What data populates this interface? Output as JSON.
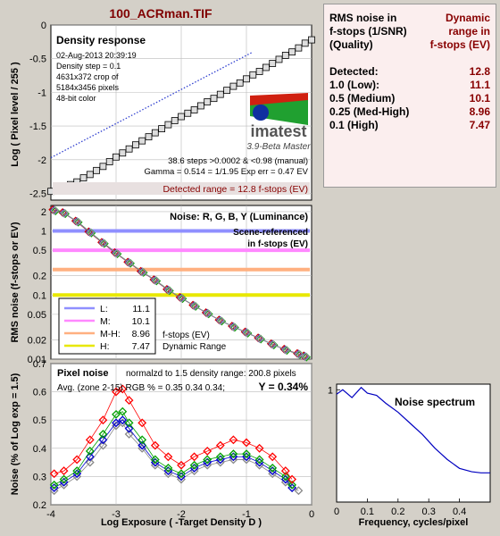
{
  "window_title": "100_ACRman.TIF",
  "colors": {
    "bg": "#d4d0c8",
    "dark_red": "#880000",
    "L": "#8f8fff",
    "M": "#ff88ff",
    "MH": "#ffb080",
    "H": "#e8e800"
  },
  "summary_panel": {
    "header_left_lines": [
      "RMS noise in",
      "f-stops (1/SNR)",
      "(Quality)"
    ],
    "header_right_lines": [
      "Dynamic",
      "range in",
      "f-stops (EV)"
    ],
    "rows": [
      {
        "label": "Detected:",
        "value": "12.8"
      },
      {
        "label": "1.0   (Low):",
        "value": "11.1"
      },
      {
        "label": "0.5   (Medium)",
        "value": "10.1"
      },
      {
        "label": "0.25 (Med-High)",
        "value": "8.96"
      },
      {
        "label": "0.1   (High)",
        "value": "7.47"
      }
    ]
  },
  "chart_data": [
    {
      "type": "line",
      "title": "Density response",
      "ylabel": "Log ( Pixel level / 255 )",
      "xlim": [
        -4,
        0
      ],
      "ylim": [
        -2.6,
        0
      ],
      "yticks": [
        "0",
        "-0.5",
        "-1",
        "-1.5",
        "-2",
        "-2.5"
      ],
      "info_lines": [
        "02-Aug-2013 20:39:19",
        "Density step = 0.1",
        "4631x372 crop of",
        "5184x3456 pixels",
        "48-bit color"
      ],
      "stats_lines": [
        "38.6 steps >0.0002 & <0.98 (manual)",
        "Gamma = 0.514 = 1/1.95  Exp err = 0.47 EV"
      ],
      "detected_range": "Detected range = 12.8 f-stops (EV)",
      "logo": "imatest",
      "logo_sub": "3.9-Beta  Master",
      "series": [
        {
          "name": "squares",
          "x": [
            -4.0,
            -3.9,
            -3.8,
            -3.7,
            -3.6,
            -3.5,
            -3.4,
            -3.3,
            -3.2,
            -3.1,
            -3.0,
            -2.9,
            -2.8,
            -2.7,
            -2.6,
            -2.5,
            -2.4,
            -2.3,
            -2.2,
            -2.1,
            -2.0,
            -1.9,
            -1.8,
            -1.7,
            -1.6,
            -1.5,
            -1.4,
            -1.3,
            -1.2,
            -1.1,
            -1.0,
            -0.9,
            -0.8,
            -0.7,
            -0.6,
            -0.5,
            -0.4,
            -0.3,
            -0.2,
            -0.1,
            0.0
          ],
          "y": [
            -2.47,
            -2.44,
            -2.41,
            -2.37,
            -2.33,
            -2.27,
            -2.22,
            -2.16,
            -2.1,
            -2.03,
            -1.96,
            -1.9,
            -1.84,
            -1.78,
            -1.72,
            -1.66,
            -1.6,
            -1.54,
            -1.48,
            -1.42,
            -1.36,
            -1.31,
            -1.26,
            -1.2,
            -1.14,
            -1.09,
            -1.03,
            -0.97,
            -0.91,
            -0.86,
            -0.8,
            -0.74,
            -0.69,
            -0.63,
            -0.57,
            -0.51,
            -0.45,
            -0.4,
            -0.34,
            -0.27,
            -0.22
          ]
        },
        {
          "name": "fit",
          "x": [
            -4.0,
            -0.9
          ],
          "y": [
            -1.97,
            -0.4
          ]
        }
      ]
    },
    {
      "type": "line",
      "title": "Noise: R, G, B, Y (Luminance)",
      "subtitle_lines": [
        "Scene-referenced",
        "in f-stops (EV)"
      ],
      "ylabel": "RMS noise (f-stops or EV)",
      "xlim": [
        -4,
        0
      ],
      "ylim_log": [
        0.01,
        2.5
      ],
      "yticks": [
        "2",
        "1",
        "0.5",
        "0.2",
        "0.1",
        "0.05",
        "0.02",
        "0.01"
      ],
      "ytick_values": [
        2,
        1,
        0.5,
        0.2,
        0.1,
        0.05,
        0.02,
        0.01
      ],
      "legend": [
        {
          "label": "L:",
          "value": "11.1",
          "level": 1.0
        },
        {
          "label": "M:",
          "value": "10.1",
          "level": 0.5
        },
        {
          "label": "M-H:",
          "value": "8.96",
          "level": 0.25
        },
        {
          "label": "H:",
          "value": "7.47",
          "level": 0.1
        }
      ],
      "legend_note_lines": [
        "f-stops (EV)",
        "Dynamic Range"
      ],
      "series": [
        {
          "name": "noise",
          "x": [
            -3.95,
            -3.8,
            -3.6,
            -3.4,
            -3.2,
            -3.0,
            -2.8,
            -2.6,
            -2.4,
            -2.2,
            -2.0,
            -1.8,
            -1.6,
            -1.4,
            -1.2,
            -1.0,
            -0.8,
            -0.6,
            -0.4,
            -0.2,
            -0.1
          ],
          "y": [
            2.1,
            1.9,
            1.4,
            0.95,
            0.65,
            0.45,
            0.32,
            0.23,
            0.17,
            0.12,
            0.09,
            0.068,
            0.052,
            0.04,
            0.032,
            0.026,
            0.021,
            0.017,
            0.014,
            0.012,
            0.011
          ]
        }
      ]
    },
    {
      "type": "line",
      "title": "Pixel noise",
      "caption": "normalzd to 1.5 density range: 200.8 pixels",
      "avg_line": "Avg. (zone 2-15) RGB % = 0.35  0.34  0.34;",
      "y_value": "Y = 0.34%",
      "xlabel": "Log Exposure ( -Target Density D )",
      "ylabel": "Noise (% of Log exp = 1.5)",
      "xlim": [
        -4,
        0
      ],
      "ylim": [
        0.2,
        0.7
      ],
      "xticks": [
        "-4",
        "-3",
        "-2",
        "-1",
        "0"
      ],
      "yticks": [
        "0.7",
        "0.6",
        "0.5",
        "0.4",
        "0.3",
        "0.2"
      ],
      "series": [
        {
          "name": "R",
          "color": "#ff0000",
          "x": [
            -3.95,
            -3.8,
            -3.6,
            -3.4,
            -3.2,
            -3.0,
            -2.9,
            -2.8,
            -2.6,
            -2.4,
            -2.2,
            -2.0,
            -1.8,
            -1.6,
            -1.4,
            -1.2,
            -1.0,
            -0.8,
            -0.6,
            -0.4,
            -0.3
          ],
          "y": [
            0.31,
            0.32,
            0.36,
            0.43,
            0.5,
            0.6,
            0.61,
            0.57,
            0.49,
            0.41,
            0.37,
            0.34,
            0.37,
            0.39,
            0.41,
            0.43,
            0.42,
            0.4,
            0.37,
            0.32,
            0.29
          ]
        },
        {
          "name": "G",
          "color": "#00a000",
          "x": [
            -3.95,
            -3.8,
            -3.6,
            -3.4,
            -3.2,
            -3.0,
            -2.9,
            -2.8,
            -2.6,
            -2.4,
            -2.2,
            -2.0,
            -1.8,
            -1.6,
            -1.4,
            -1.2,
            -1.0,
            -0.8,
            -0.6,
            -0.4,
            -0.3
          ],
          "y": [
            0.27,
            0.29,
            0.32,
            0.39,
            0.45,
            0.52,
            0.53,
            0.49,
            0.43,
            0.36,
            0.33,
            0.31,
            0.34,
            0.36,
            0.37,
            0.38,
            0.38,
            0.36,
            0.33,
            0.3,
            0.27
          ]
        },
        {
          "name": "B",
          "color": "#0000d0",
          "x": [
            -3.95,
            -3.8,
            -3.6,
            -3.4,
            -3.2,
            -3.0,
            -2.9,
            -2.8,
            -2.6,
            -2.4,
            -2.2,
            -2.0,
            -1.8,
            -1.6,
            -1.4,
            -1.2,
            -1.0,
            -0.8,
            -0.6,
            -0.4,
            -0.3
          ],
          "y": [
            0.26,
            0.28,
            0.31,
            0.37,
            0.43,
            0.49,
            0.5,
            0.47,
            0.41,
            0.35,
            0.32,
            0.3,
            0.33,
            0.35,
            0.36,
            0.37,
            0.37,
            0.35,
            0.32,
            0.29,
            0.26
          ]
        },
        {
          "name": "Y",
          "color": "#888888",
          "x": [
            -3.95,
            -3.8,
            -3.6,
            -3.4,
            -3.2,
            -3.0,
            -2.9,
            -2.8,
            -2.6,
            -2.4,
            -2.2,
            -2.0,
            -1.8,
            -1.6,
            -1.4,
            -1.2,
            -1.0,
            -0.8,
            -0.6,
            -0.4,
            -0.3,
            -0.2
          ],
          "y": [
            0.25,
            0.27,
            0.3,
            0.35,
            0.41,
            0.48,
            0.49,
            0.45,
            0.4,
            0.34,
            0.31,
            0.29,
            0.32,
            0.34,
            0.35,
            0.36,
            0.36,
            0.34,
            0.31,
            0.28,
            0.26,
            0.25
          ]
        }
      ]
    },
    {
      "type": "line",
      "title": "Noise spectrum",
      "xlabel": "Frequency, cycles/pixel",
      "xlim": [
        0,
        0.5
      ],
      "ylim": [
        0,
        1.05
      ],
      "xticks": [
        "0",
        "0.1",
        "0.2",
        "0.3",
        "0.4"
      ],
      "yticks": [
        "1"
      ],
      "series": [
        {
          "name": "spectrum",
          "x": [
            0.0,
            0.02,
            0.05,
            0.08,
            0.1,
            0.13,
            0.16,
            0.2,
            0.24,
            0.28,
            0.32,
            0.36,
            0.4,
            0.44,
            0.47,
            0.5
          ],
          "y": [
            0.96,
            1.0,
            0.93,
            1.02,
            0.97,
            0.95,
            0.88,
            0.8,
            0.7,
            0.6,
            0.48,
            0.38,
            0.3,
            0.27,
            0.26,
            0.26
          ]
        }
      ]
    }
  ]
}
